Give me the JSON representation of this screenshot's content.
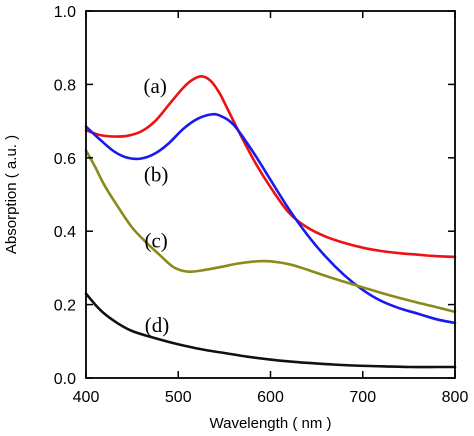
{
  "chart_data": {
    "type": "line",
    "xlabel": "Wavelength ( nm )",
    "ylabel": "Absorption ( a.u. )",
    "xlim": [
      400,
      800
    ],
    "ylim": [
      0.0,
      1.0
    ],
    "xticks": [
      400,
      500,
      600,
      700,
      800
    ],
    "yticks": [
      0.0,
      0.2,
      0.4,
      0.6,
      0.8,
      1.0
    ],
    "xtick_labels": [
      "400",
      "500",
      "600",
      "700",
      "800"
    ],
    "ytick_labels": [
      "0.0",
      "0.2",
      "0.4",
      "0.6",
      "0.8",
      "1.0"
    ],
    "grid": false,
    "series": [
      {
        "name": "(a)",
        "color": "#ee1111",
        "label_at": [
          475,
          0.795
        ],
        "points": [
          [
            400,
            0.675
          ],
          [
            415,
            0.662
          ],
          [
            430,
            0.658
          ],
          [
            445,
            0.66
          ],
          [
            460,
            0.672
          ],
          [
            475,
            0.7
          ],
          [
            490,
            0.745
          ],
          [
            505,
            0.79
          ],
          [
            515,
            0.812
          ],
          [
            525,
            0.822
          ],
          [
            535,
            0.81
          ],
          [
            545,
            0.775
          ],
          [
            555,
            0.725
          ],
          [
            570,
            0.65
          ],
          [
            585,
            0.58
          ],
          [
            600,
            0.52
          ],
          [
            620,
            0.45
          ],
          [
            640,
            0.41
          ],
          [
            660,
            0.385
          ],
          [
            680,
            0.368
          ],
          [
            700,
            0.355
          ],
          [
            720,
            0.346
          ],
          [
            740,
            0.34
          ],
          [
            760,
            0.336
          ],
          [
            780,
            0.332
          ],
          [
            800,
            0.33
          ]
        ]
      },
      {
        "name": "(b)",
        "color": "#1a1aee",
        "label_at": [
          476,
          0.555
        ],
        "points": [
          [
            400,
            0.685
          ],
          [
            415,
            0.65
          ],
          [
            430,
            0.618
          ],
          [
            445,
            0.6
          ],
          [
            460,
            0.598
          ],
          [
            475,
            0.612
          ],
          [
            490,
            0.64
          ],
          [
            505,
            0.678
          ],
          [
            520,
            0.705
          ],
          [
            535,
            0.718
          ],
          [
            545,
            0.715
          ],
          [
            560,
            0.69
          ],
          [
            580,
            0.62
          ],
          [
            600,
            0.54
          ],
          [
            620,
            0.46
          ],
          [
            640,
            0.39
          ],
          [
            660,
            0.33
          ],
          [
            680,
            0.28
          ],
          [
            700,
            0.24
          ],
          [
            720,
            0.21
          ],
          [
            740,
            0.19
          ],
          [
            760,
            0.175
          ],
          [
            780,
            0.16
          ],
          [
            800,
            0.15
          ]
        ]
      },
      {
        "name": "(c)",
        "color": "#8a8a1a",
        "label_at": [
          476,
          0.375
        ],
        "points": [
          [
            400,
            0.62
          ],
          [
            410,
            0.575
          ],
          [
            420,
            0.525
          ],
          [
            435,
            0.465
          ],
          [
            450,
            0.41
          ],
          [
            465,
            0.37
          ],
          [
            480,
            0.335
          ],
          [
            495,
            0.302
          ],
          [
            510,
            0.29
          ],
          [
            525,
            0.293
          ],
          [
            545,
            0.302
          ],
          [
            565,
            0.312
          ],
          [
            585,
            0.318
          ],
          [
            600,
            0.318
          ],
          [
            620,
            0.31
          ],
          [
            640,
            0.295
          ],
          [
            660,
            0.278
          ],
          [
            680,
            0.262
          ],
          [
            700,
            0.247
          ],
          [
            720,
            0.232
          ],
          [
            740,
            0.218
          ],
          [
            760,
            0.205
          ],
          [
            780,
            0.193
          ],
          [
            800,
            0.18
          ]
        ]
      },
      {
        "name": "(d)",
        "color": "#111111",
        "label_at": [
          477,
          0.145
        ],
        "points": [
          [
            400,
            0.23
          ],
          [
            410,
            0.2
          ],
          [
            420,
            0.175
          ],
          [
            435,
            0.148
          ],
          [
            450,
            0.128
          ],
          [
            470,
            0.112
          ],
          [
            490,
            0.098
          ],
          [
            510,
            0.086
          ],
          [
            530,
            0.076
          ],
          [
            550,
            0.068
          ],
          [
            575,
            0.058
          ],
          [
            600,
            0.05
          ],
          [
            630,
            0.043
          ],
          [
            660,
            0.038
          ],
          [
            690,
            0.034
          ],
          [
            720,
            0.032
          ],
          [
            750,
            0.03
          ],
          [
            780,
            0.03
          ],
          [
            800,
            0.03
          ]
        ]
      }
    ]
  }
}
